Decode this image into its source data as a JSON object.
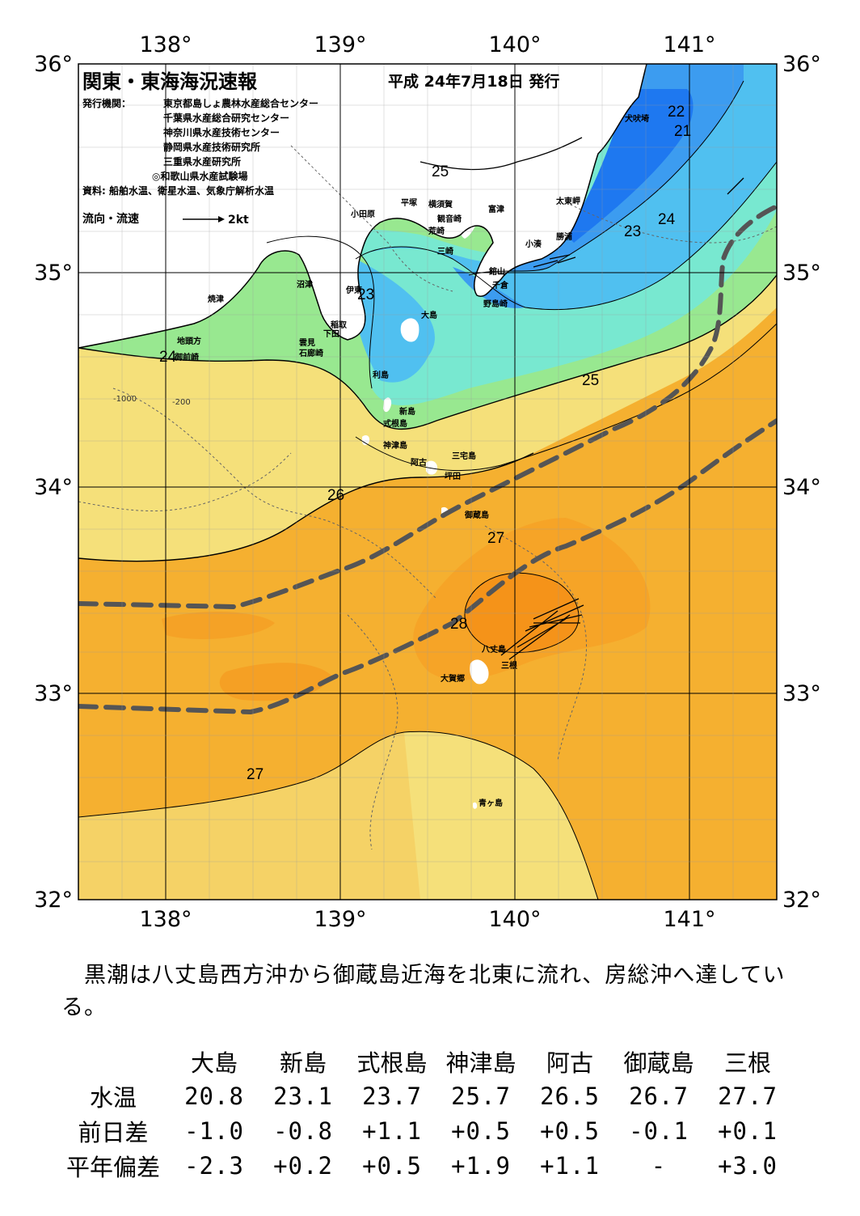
{
  "map": {
    "title": "関東・東海海況速報",
    "date": "平成 24年7月18日 発行",
    "issuer_label": "発行機関：",
    "issuers": [
      "東京都島しょ農林水産総合センター",
      "千葉県水産総合研究センター",
      "神奈川県水産技術センター",
      "静岡県水産技術研究所",
      "三重県水産研究所",
      "◎和歌山県水産試験場"
    ],
    "source": "資料: 船舶水温、衛星水温、気象庁解析水温",
    "flow_legend": "流向・流速",
    "flow_scale": "2kt",
    "lon_labels": [
      "138°",
      "139°",
      "140°",
      "141°"
    ],
    "lat_labels": [
      "36°",
      "35°",
      "34°",
      "33°",
      "32°"
    ],
    "isotherm_labels": [
      "21",
      "22",
      "23",
      "23",
      "24",
      "24",
      "25",
      "25",
      "26",
      "27",
      "27",
      "28"
    ],
    "depth_labels": [
      "-200",
      "-1000"
    ],
    "places": [
      "犬吠埼",
      "太東岬",
      "勝浦",
      "小湊",
      "富津",
      "横須賀",
      "観音崎",
      "荒崎",
      "三崎",
      "平塚",
      "小田原",
      "館山",
      "千倉",
      "野島崎",
      "沼津",
      "伊東",
      "稲取",
      "下田",
      "雲見",
      "石廊崎",
      "焼津",
      "地頭方",
      "御前崎",
      "大島",
      "利島",
      "新島",
      "式根島",
      "神津島",
      "三宅島",
      "阿古",
      "坪田",
      "御蔵島",
      "八丈島",
      "三根",
      "大賀郷",
      "青ヶ島"
    ],
    "colors": {
      "temp_21": "#1e78f0",
      "temp_22": "#3c9cf0",
      "temp_23": "#50c0f0",
      "temp_24": "#78e8d0",
      "temp_25": "#98e890",
      "temp_26": "#f5e07a",
      "temp_27": "#f5b030",
      "temp_28": "#f38a10",
      "land": "#ffffff",
      "kuroshio_axis": "#555555"
    }
  },
  "summary": "黒潮は八丈島西方沖から御蔵島近海を北東に流れ、房総沖へ達している。",
  "table": {
    "columns": [
      "大島",
      "新島",
      "式根島",
      "神津島",
      "阿古",
      "御蔵島",
      "三根"
    ],
    "rows": [
      {
        "label": "水温",
        "values": [
          "20.8",
          "23.1",
          "23.7",
          "25.7",
          "26.5",
          "26.7",
          "27.7"
        ]
      },
      {
        "label": "前日差",
        "values": [
          "-1.0",
          "-0.8",
          "+1.1",
          "+0.5",
          "+0.5",
          "-0.1",
          "+0.1"
        ]
      },
      {
        "label": "平年偏差",
        "values": [
          "-2.3",
          "+0.2",
          "+0.5",
          "+1.9",
          "+1.1",
          "-",
          "+3.0"
        ]
      }
    ]
  }
}
